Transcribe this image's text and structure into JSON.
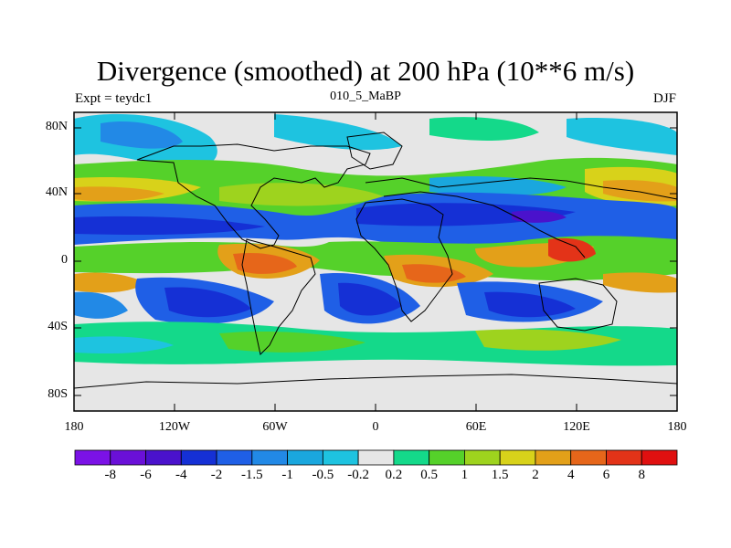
{
  "title": "Divergence (smoothed) at 200 hPa (10**6 m/s)",
  "left_label": "Expt = teydc1",
  "center_label": "010_5_MaBP",
  "right_label": "DJF",
  "map": {
    "lat_ticks": [
      "80N",
      "40N",
      "0",
      "40S",
      "80S"
    ],
    "lon_ticks": [
      "180",
      "120W",
      "60W",
      "0",
      "60E",
      "120E",
      "180"
    ]
  },
  "colorbar": {
    "labels": [
      "-8",
      "-6",
      "-4",
      "-2",
      "-1.5",
      "-1",
      "-0.5",
      "-0.2",
      "0.2",
      "0.5",
      "1",
      "1.5",
      "2",
      "4",
      "6",
      "8"
    ],
    "colors": [
      "#7b12e6",
      "#6a10d8",
      "#4a12cc",
      "#1530d5",
      "#1f5fe6",
      "#2289e6",
      "#1aa7de",
      "#1ec3e0",
      "#e6e6e6",
      "#14d98a",
      "#55d12a",
      "#9ed31e",
      "#d8d21a",
      "#e3a019",
      "#e6661a",
      "#e33318",
      "#e01010"
    ]
  }
}
